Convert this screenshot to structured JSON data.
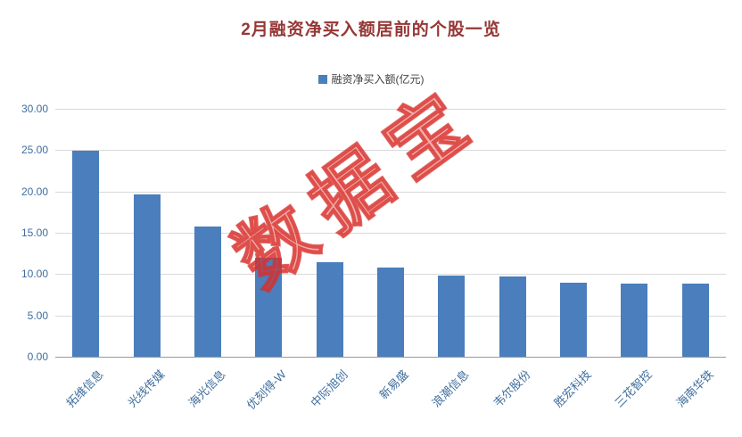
{
  "chart_data": {
    "type": "bar",
    "title": "2月融资净买入额居前的个股一览",
    "legend": "融资净买入额(亿元)",
    "categories": [
      "拓维信息",
      "光线传媒",
      "海光信息",
      "优刻得-W",
      "中际旭创",
      "新易盛",
      "浪潮信息",
      "韦尔股份",
      "胜宏科技",
      "三花智控",
      "海南华铁"
    ],
    "values": [
      24.9,
      19.6,
      15.8,
      12.0,
      11.4,
      10.8,
      9.8,
      9.7,
      9.0,
      8.9,
      8.8
    ],
    "ylim": [
      0,
      30
    ],
    "yticks": [
      "0.00",
      "5.00",
      "10.00",
      "15.00",
      "20.00",
      "25.00",
      "30.00"
    ],
    "ytick_values": [
      0,
      5,
      10,
      15,
      20,
      25,
      30
    ],
    "grid": true,
    "legend_position": "top",
    "bar_color": "#4a7ebc",
    "title_color": "#953735",
    "axis_label_color": "#3e6d9c",
    "watermark": "数据宝",
    "watermark_color": "#e13c37"
  }
}
